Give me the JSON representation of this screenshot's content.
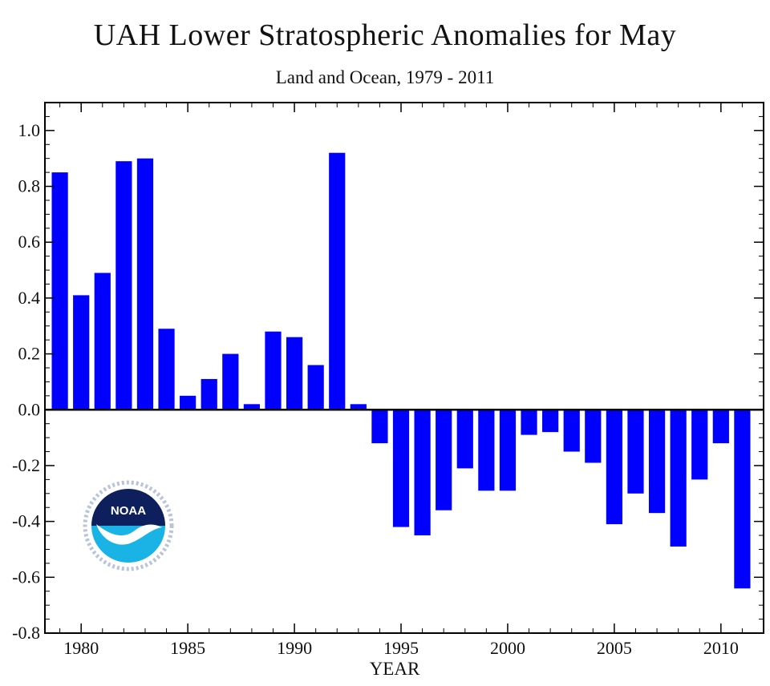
{
  "chart_data": {
    "type": "bar",
    "title": "UAH Lower Stratospheric Anomalies for May",
    "subtitle": "Land and Ocean, 1979 - 2011",
    "xlabel": "YEAR",
    "ylabel": "",
    "ylim": [
      -0.8,
      1.1
    ],
    "xlim": [
      1978.3,
      2012
    ],
    "y_ticks": [
      1.0,
      0.8,
      0.6,
      0.4,
      0.2,
      0.0,
      -0.2,
      -0.4,
      -0.6,
      -0.8
    ],
    "y_tick_labels": [
      "1.0",
      "0.8",
      "0.6",
      "0.4",
      "0.2",
      "0.0",
      "-0.2",
      "-0.4",
      "-0.6",
      "-0.8"
    ],
    "x_ticks": [
      1980,
      1985,
      1990,
      1995,
      2000,
      2005,
      2010
    ],
    "x_tick_labels": [
      "1980",
      "1985",
      "1990",
      "1995",
      "2000",
      "2005",
      "2010"
    ],
    "bar_color": "#0000ff",
    "zero_line": true,
    "grid": false,
    "x": [
      1979,
      1980,
      1981,
      1982,
      1983,
      1984,
      1985,
      1986,
      1987,
      1988,
      1989,
      1990,
      1991,
      1992,
      1993,
      1994,
      1995,
      1996,
      1997,
      1998,
      1999,
      2000,
      2001,
      2002,
      2003,
      2004,
      2005,
      2006,
      2007,
      2008,
      2009,
      2010,
      2011
    ],
    "values": [
      0.85,
      0.41,
      0.49,
      0.89,
      0.9,
      0.29,
      0.05,
      0.11,
      0.2,
      0.02,
      0.28,
      0.26,
      0.16,
      0.92,
      0.02,
      -0.12,
      -0.42,
      -0.45,
      -0.36,
      -0.21,
      -0.29,
      -0.29,
      -0.09,
      -0.08,
      -0.15,
      -0.19,
      -0.41,
      -0.3,
      -0.37,
      -0.49,
      -0.25,
      -0.12,
      -0.64
    ]
  },
  "logo": {
    "name": "noaa-logo",
    "text": "NOAA",
    "colors": {
      "dark": "#0d1f5c",
      "light": "#19b3e6"
    }
  }
}
